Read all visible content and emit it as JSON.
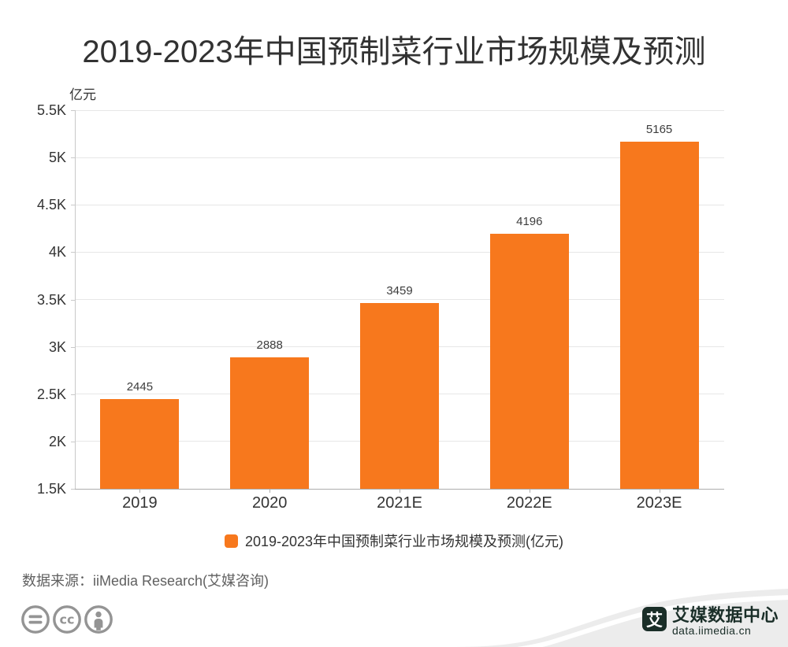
{
  "title": "2019-2023年中国预制菜行业市场规模及预测",
  "chart_data": {
    "type": "bar",
    "title": "2019-2023年中国预制菜行业市场规模及预测",
    "unit_label": "亿元",
    "categories": [
      "2019",
      "2020",
      "2021E",
      "2022E",
      "2023E"
    ],
    "values": [
      2445,
      2888,
      3459,
      4196,
      5165
    ],
    "series_name": "2019-2023年中国预制菜行业市场规模及预测(亿元)",
    "ylim": [
      1500,
      5500
    ],
    "y_ticks": [
      {
        "label": "1.5K",
        "value": 1500
      },
      {
        "label": "2K",
        "value": 2000
      },
      {
        "label": "2.5K",
        "value": 2500
      },
      {
        "label": "3K",
        "value": 3000
      },
      {
        "label": "3.5K",
        "value": 3500
      },
      {
        "label": "4K",
        "value": 4000
      },
      {
        "label": "4.5K",
        "value": 4500
      },
      {
        "label": "5K",
        "value": 5000
      },
      {
        "label": "5.5K",
        "value": 5500
      }
    ],
    "grid": true,
    "legend_position": "bottom",
    "bar_color": "#F7781D"
  },
  "legend": {
    "label": "2019-2023年中国预制菜行业市场规模及预测(亿元)",
    "marker_color": "#F7781D"
  },
  "footer": {
    "source": "数据来源：iiMedia Research(艾媒咨询)",
    "icons": [
      "equals-icon",
      "cc-icon",
      "attribution-person-icon"
    ]
  },
  "branding": {
    "logo_glyph": "艾",
    "name": "艾媒数据中心",
    "url": "data.iimedia.cn",
    "logo_color": "#1A2E28",
    "swoosh_color": "#ECECEC"
  },
  "colors": {
    "accent": "#F7781D",
    "grid_line": "#E7E7E7",
    "axis_line": "#ADADAD",
    "text_dark": "#333333",
    "text_muted": "#606060",
    "icon_gray": "#949494"
  }
}
